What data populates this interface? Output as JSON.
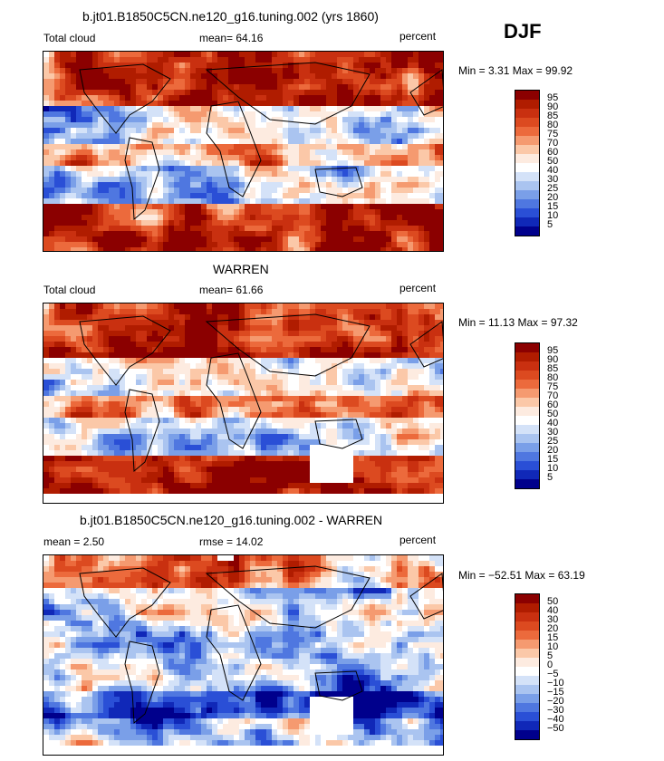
{
  "season": "DJF",
  "chart_data": [
    {
      "type": "heatmap",
      "title": "b.jt01.B1850C5CN.ne120_g16.tuning.002 (yrs 1860)",
      "left_label": "Total cloud",
      "stat_text": "mean=  64.16",
      "units": "percent",
      "range_text": "Min =   3.31 Max =  99.92",
      "min": 3.31,
      "max": 99.92,
      "mean": 64.16,
      "levels": [
        "95",
        "90",
        "85",
        "80",
        "75",
        "70",
        "60",
        "50",
        "40",
        "30",
        "25",
        "20",
        "15",
        "10",
        "5"
      ]
    },
    {
      "type": "heatmap",
      "title": "WARREN",
      "left_label": "Total cloud",
      "stat_text": "mean=  61.66",
      "units": "percent",
      "range_text": "Min =  11.13 Max =  97.32",
      "min": 11.13,
      "max": 97.32,
      "mean": 61.66,
      "levels": [
        "95",
        "90",
        "85",
        "80",
        "75",
        "70",
        "60",
        "50",
        "40",
        "30",
        "25",
        "20",
        "15",
        "10",
        "5"
      ]
    },
    {
      "type": "heatmap",
      "title": "b.jt01.B1850C5CN.ne120_g16.tuning.002 - WARREN",
      "left_label": "mean =    2.50",
      "stat_text": "rmse =   14.02",
      "units": "percent",
      "range_text": "Min = −52.51 Max =  63.19",
      "min": -52.51,
      "max": 63.19,
      "mean": 2.5,
      "rmse": 14.02,
      "levels": [
        "50",
        "40",
        "30",
        "20",
        "15",
        "10",
        "5",
        "0",
        "−5",
        "−10",
        "−15",
        "−20",
        "−30",
        "−40",
        "−50"
      ]
    }
  ],
  "colors": [
    "#8b0000",
    "#b01c00",
    "#c93010",
    "#dc4a20",
    "#ec6a3c",
    "#f59a70",
    "#fbc8a8",
    "#fdebe0",
    "#ffffff",
    "#d4e2f8",
    "#aac4f0",
    "#7a9fe8",
    "#4f77e0",
    "#2a4fd6",
    "#1028b8",
    "#00008c"
  ]
}
